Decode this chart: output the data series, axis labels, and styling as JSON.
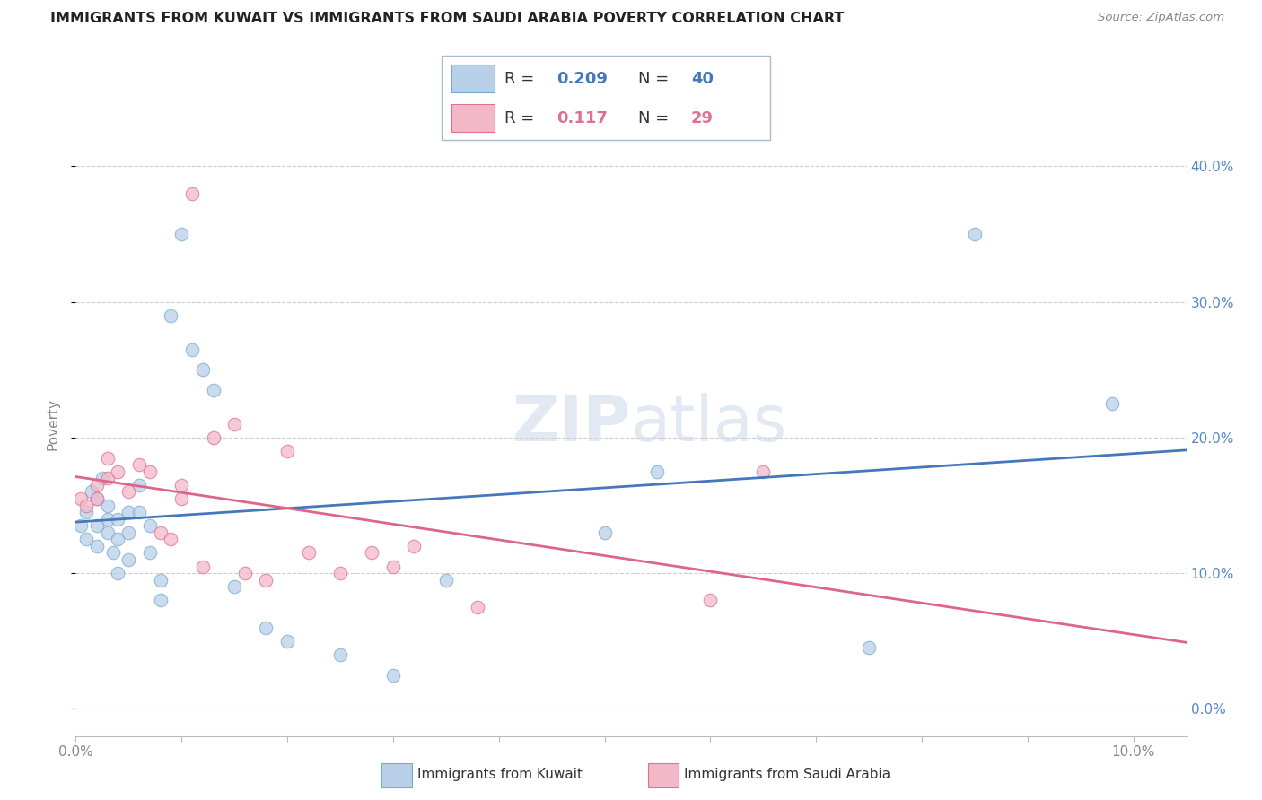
{
  "title": "IMMIGRANTS FROM KUWAIT VS IMMIGRANTS FROM SAUDI ARABIA POVERTY CORRELATION CHART",
  "source": "Source: ZipAtlas.com",
  "ylabel": "Poverty",
  "xlim": [
    0.0,
    0.105
  ],
  "ylim": [
    -0.02,
    0.44
  ],
  "ytick_vals": [
    0.0,
    0.1,
    0.2,
    0.3,
    0.4
  ],
  "kuwait_color": "#b8d0e8",
  "kuwait_edge": "#7aaad0",
  "saudi_color": "#f2b8c8",
  "saudi_edge": "#e07090",
  "kuwait_R": 0.209,
  "kuwait_N": 40,
  "saudi_R": 0.117,
  "saudi_N": 29,
  "kuwait_line_color": "#4477bb",
  "saudi_line_color": "#dd6688",
  "watermark_zip": "ZIP",
  "watermark_atlas": "atlas",
  "legend_kuwait": "Immigrants from Kuwait",
  "legend_saudi": "Immigrants from Saudi Arabia",
  "kuwait_x": [
    0.0005,
    0.001,
    0.001,
    0.0015,
    0.002,
    0.002,
    0.002,
    0.0025,
    0.003,
    0.003,
    0.003,
    0.0035,
    0.004,
    0.004,
    0.004,
    0.005,
    0.005,
    0.005,
    0.006,
    0.006,
    0.007,
    0.007,
    0.008,
    0.008,
    0.009,
    0.01,
    0.011,
    0.012,
    0.013,
    0.015,
    0.018,
    0.02,
    0.025,
    0.03,
    0.035,
    0.05,
    0.055,
    0.075,
    0.085,
    0.098
  ],
  "kuwait_y": [
    0.135,
    0.145,
    0.125,
    0.16,
    0.155,
    0.135,
    0.12,
    0.17,
    0.15,
    0.14,
    0.13,
    0.115,
    0.14,
    0.125,
    0.1,
    0.145,
    0.13,
    0.11,
    0.165,
    0.145,
    0.135,
    0.115,
    0.095,
    0.08,
    0.29,
    0.35,
    0.265,
    0.25,
    0.235,
    0.09,
    0.06,
    0.05,
    0.04,
    0.025,
    0.095,
    0.13,
    0.175,
    0.045,
    0.35,
    0.225
  ],
  "saudi_x": [
    0.0005,
    0.001,
    0.002,
    0.002,
    0.003,
    0.003,
    0.004,
    0.005,
    0.006,
    0.007,
    0.008,
    0.009,
    0.01,
    0.01,
    0.011,
    0.012,
    0.013,
    0.015,
    0.016,
    0.018,
    0.02,
    0.022,
    0.025,
    0.028,
    0.03,
    0.032,
    0.038,
    0.06,
    0.065
  ],
  "saudi_y": [
    0.155,
    0.15,
    0.165,
    0.155,
    0.185,
    0.17,
    0.175,
    0.16,
    0.18,
    0.175,
    0.13,
    0.125,
    0.165,
    0.155,
    0.38,
    0.105,
    0.2,
    0.21,
    0.1,
    0.095,
    0.19,
    0.115,
    0.1,
    0.115,
    0.105,
    0.12,
    0.075,
    0.08,
    0.175
  ]
}
